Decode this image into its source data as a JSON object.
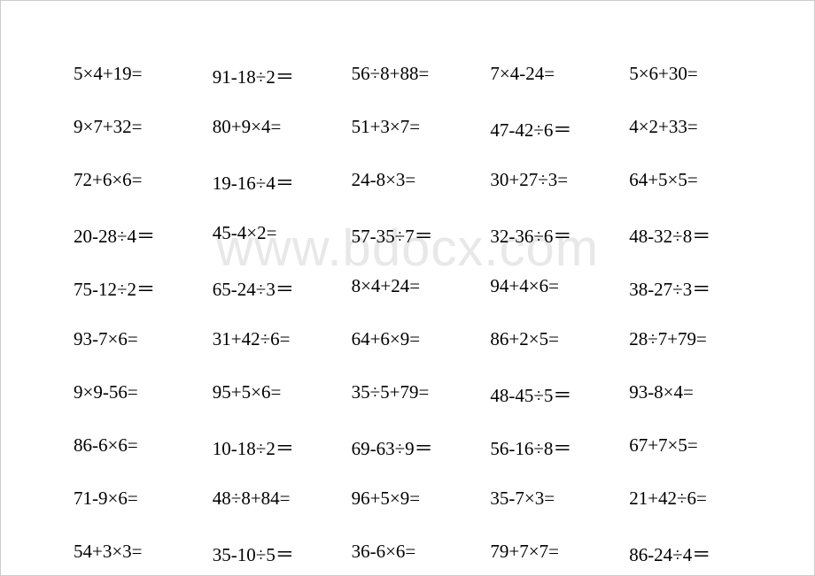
{
  "watermark": "www.bdocx.com",
  "fontsize": 21,
  "text_color": "#000000",
  "background_color": "#ffffff",
  "watermark_color": "#e8e8e8",
  "border_color": "#cccccc",
  "grid": {
    "columns": 5,
    "rows": 10,
    "cells": [
      [
        "5×4+19=",
        "91-18÷2＝",
        "56÷8+88=",
        "7×4-24=",
        "5×6+30="
      ],
      [
        "9×7+32=",
        "80+9×4=",
        "51+3×7=",
        "47-42÷6＝",
        "4×2+33="
      ],
      [
        "72+6×6=",
        "19-16÷4＝",
        "24-8×3=",
        "30+27÷3=",
        "64+5×5="
      ],
      [
        "20-28÷4＝",
        "45-4×2=",
        "57-35÷7＝",
        "32-36÷6＝",
        "48-32÷8＝"
      ],
      [
        "75-12÷2＝",
        "65-24÷3＝",
        "8×4+24=",
        "94+4×6=",
        "38-27÷3＝"
      ],
      [
        "93-7×6=",
        "31+42÷6=",
        "64+6×9=",
        "86+2×5=",
        "28÷7+79="
      ],
      [
        "9×9-56=",
        "95+5×6=",
        "35÷5+79=",
        "48-45÷5＝",
        "93-8×4="
      ],
      [
        "86-6×6=",
        "10-18÷2＝",
        "69-63÷9＝",
        "56-16÷8＝",
        "67+7×5="
      ],
      [
        "71-9×6=",
        "48÷8+84=",
        "96+5×9=",
        "35-7×3=",
        "21+42÷6="
      ],
      [
        "54+3×3=",
        "35-10÷5＝",
        "36-6×6=",
        "79+7×7=",
        "86-24÷4＝"
      ]
    ]
  }
}
